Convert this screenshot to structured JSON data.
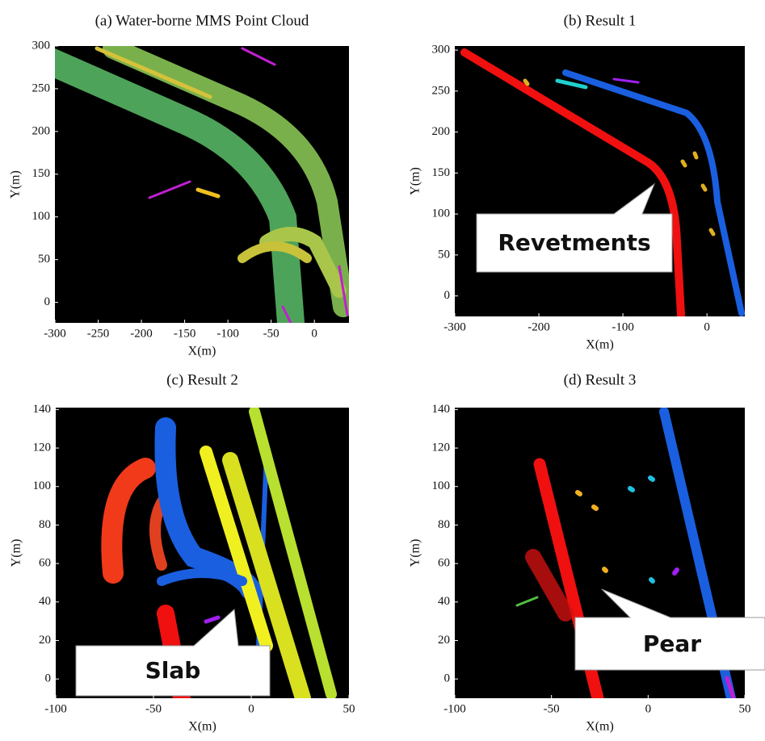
{
  "chart_data": [
    {
      "type": "point-cloud",
      "title": "(a) Water-borne MMS  Point Cloud",
      "xlabel": "X(m)",
      "ylabel": "Y(m)",
      "xlim": [
        -300,
        40
      ],
      "ylim": [
        -24,
        300
      ],
      "xticks": [
        -300,
        -250,
        -200,
        -150,
        -100,
        -50,
        0
      ],
      "yticks": [
        0,
        50,
        100,
        150,
        200,
        250,
        300
      ]
    },
    {
      "type": "point-cloud",
      "title": "(b) Result 1",
      "xlabel": "X(m)",
      "ylabel": "Y(m)",
      "xlim": [
        -300,
        45
      ],
      "ylim": [
        -25,
        305
      ],
      "xticks": [
        -300,
        -200,
        -100,
        0
      ],
      "yticks": [
        0,
        50,
        100,
        150,
        200,
        250,
        300
      ],
      "annotation": "Revetments"
    },
    {
      "type": "point-cloud",
      "title": "(c) Result 2",
      "xlabel": "X(m)",
      "ylabel": "Y(m)",
      "xlim": [
        -100,
        50
      ],
      "ylim": [
        -10,
        141
      ],
      "xticks": [
        -100,
        -50,
        0,
        50
      ],
      "yticks": [
        0,
        20,
        40,
        60,
        80,
        100,
        120,
        140
      ],
      "annotation": "Slab"
    },
    {
      "type": "point-cloud",
      "title": "(d) Result 3",
      "xlabel": "X(m)",
      "ylabel": "Y(m)",
      "xlim": [
        -100,
        50
      ],
      "ylim": [
        -10,
        141
      ],
      "xticks": [
        -100,
        -50,
        0,
        50
      ],
      "yticks": [
        0,
        20,
        40,
        60,
        80,
        100,
        120,
        140
      ],
      "annotation": "Pear"
    }
  ]
}
